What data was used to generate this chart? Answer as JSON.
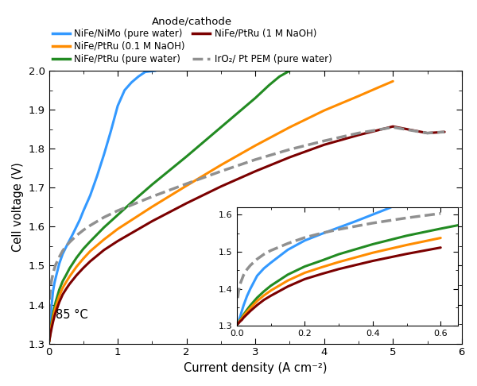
{
  "title": "",
  "xlabel": "Current density (A cm⁻²)",
  "ylabel": "Cell voltage (V)",
  "xlim": [
    0,
    6.0
  ],
  "ylim": [
    1.3,
    2.0
  ],
  "legend_title": "Anode/cathode",
  "annotation": "85 °C",
  "series": [
    {
      "key": "NiFe/NiMo (pure water)",
      "label": "NiFe/NiMo (pure water)",
      "color": "#3399FF",
      "linewidth": 2.2,
      "linestyle": "solid",
      "x": [
        0.003,
        0.005,
        0.008,
        0.01,
        0.015,
        0.02,
        0.03,
        0.04,
        0.06,
        0.08,
        0.1,
        0.15,
        0.2,
        0.25,
        0.3,
        0.35,
        0.4,
        0.45,
        0.5,
        0.55,
        0.6,
        0.7,
        0.8,
        0.9,
        1.0,
        1.1,
        1.2,
        1.3,
        1.4,
        1.55
      ],
      "y": [
        1.305,
        1.31,
        1.32,
        1.325,
        1.34,
        1.355,
        1.38,
        1.4,
        1.435,
        1.455,
        1.47,
        1.505,
        1.53,
        1.548,
        1.565,
        1.582,
        1.6,
        1.618,
        1.64,
        1.66,
        1.68,
        1.73,
        1.785,
        1.845,
        1.91,
        1.95,
        1.97,
        1.985,
        1.997,
        2.0
      ]
    },
    {
      "key": "NiFe/PtRu (pure water)",
      "label": "NiFe/PtRu (pure water)",
      "color": "#228B22",
      "linewidth": 2.2,
      "linestyle": "solid",
      "x": [
        0.003,
        0.005,
        0.008,
        0.01,
        0.015,
        0.02,
        0.03,
        0.04,
        0.06,
        0.08,
        0.1,
        0.15,
        0.2,
        0.25,
        0.3,
        0.4,
        0.5,
        0.6,
        0.7,
        0.8,
        1.0,
        1.2,
        1.5,
        2.0,
        2.5,
        3.0,
        3.2,
        3.35,
        3.5
      ],
      "y": [
        1.305,
        1.308,
        1.313,
        1.316,
        1.322,
        1.33,
        1.343,
        1.355,
        1.376,
        1.393,
        1.408,
        1.438,
        1.46,
        1.476,
        1.493,
        1.52,
        1.543,
        1.562,
        1.58,
        1.598,
        1.63,
        1.662,
        1.708,
        1.78,
        1.855,
        1.93,
        1.963,
        1.985,
        2.0
      ]
    },
    {
      "key": "NiFe/PtRu (0.1 M NaOH)",
      "label": "NiFe/PtRu (0.1 M NaOH)",
      "color": "#FF8C00",
      "linewidth": 2.2,
      "linestyle": "solid",
      "x": [
        0.003,
        0.005,
        0.008,
        0.01,
        0.015,
        0.02,
        0.03,
        0.04,
        0.06,
        0.08,
        0.1,
        0.15,
        0.2,
        0.25,
        0.3,
        0.4,
        0.5,
        0.6,
        0.8,
        1.0,
        1.5,
        2.0,
        2.5,
        3.0,
        3.5,
        4.0,
        4.5,
        4.8,
        5.0
      ],
      "y": [
        1.305,
        1.308,
        1.312,
        1.315,
        1.32,
        1.327,
        1.338,
        1.348,
        1.367,
        1.382,
        1.395,
        1.422,
        1.443,
        1.458,
        1.472,
        1.497,
        1.518,
        1.537,
        1.567,
        1.594,
        1.651,
        1.705,
        1.758,
        1.808,
        1.855,
        1.898,
        1.935,
        1.958,
        1.973
      ]
    },
    {
      "key": "NiFe/PtRu (1 M NaOH)",
      "label": "NiFe/PtRu (1 M NaOH)",
      "color": "#7B0000",
      "linewidth": 2.2,
      "linestyle": "solid",
      "x": [
        0.003,
        0.005,
        0.008,
        0.01,
        0.015,
        0.02,
        0.03,
        0.04,
        0.06,
        0.08,
        0.1,
        0.15,
        0.2,
        0.25,
        0.3,
        0.4,
        0.5,
        0.6,
        0.8,
        1.0,
        1.5,
        2.0,
        2.5,
        3.0,
        3.5,
        4.0,
        4.5,
        5.0,
        5.5,
        5.75
      ],
      "y": [
        1.305,
        1.307,
        1.31,
        1.312,
        1.316,
        1.322,
        1.331,
        1.34,
        1.356,
        1.37,
        1.381,
        1.406,
        1.426,
        1.44,
        1.453,
        1.475,
        1.494,
        1.511,
        1.54,
        1.563,
        1.614,
        1.66,
        1.703,
        1.742,
        1.778,
        1.81,
        1.835,
        1.857,
        1.84,
        1.843
      ]
    },
    {
      "key": "IrO2/ Pt PEM (pure water)",
      "label": "IrO₂/ Pt PEM (pure water)",
      "color": "#909090",
      "linewidth": 2.5,
      "linestyle": "dashed",
      "x": [
        0.003,
        0.005,
        0.008,
        0.01,
        0.015,
        0.02,
        0.03,
        0.04,
        0.06,
        0.08,
        0.1,
        0.15,
        0.2,
        0.25,
        0.3,
        0.4,
        0.5,
        0.6,
        0.8,
        1.0,
        1.5,
        2.0,
        2.5,
        3.0,
        3.5,
        4.0,
        4.5,
        5.0,
        5.5,
        5.75
      ],
      "y": [
        1.375,
        1.39,
        1.405,
        1.413,
        1.425,
        1.437,
        1.452,
        1.463,
        1.48,
        1.493,
        1.503,
        1.522,
        1.538,
        1.55,
        1.56,
        1.577,
        1.591,
        1.603,
        1.624,
        1.641,
        1.677,
        1.71,
        1.742,
        1.772,
        1.798,
        1.82,
        1.84,
        1.855,
        1.84,
        1.843
      ]
    }
  ],
  "inset": {
    "bounds": [
      0.455,
      0.065,
      0.535,
      0.435
    ],
    "xlim": [
      0.0,
      0.65
    ],
    "ylim": [
      1.3,
      1.62
    ],
    "xticks": [
      0.0,
      0.2,
      0.4,
      0.6
    ],
    "yticks": [
      1.3,
      1.4,
      1.5,
      1.6
    ]
  },
  "background_color": "#ffffff"
}
